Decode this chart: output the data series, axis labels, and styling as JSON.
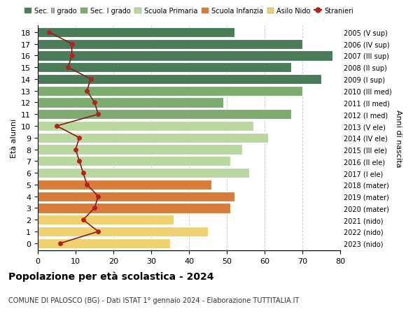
{
  "ages": [
    18,
    17,
    16,
    15,
    14,
    13,
    12,
    11,
    10,
    9,
    8,
    7,
    6,
    5,
    4,
    3,
    2,
    1,
    0
  ],
  "right_labels": [
    "2005 (V sup)",
    "2006 (IV sup)",
    "2007 (III sup)",
    "2008 (II sup)",
    "2009 (I sup)",
    "2010 (III med)",
    "2011 (II med)",
    "2012 (I med)",
    "2013 (V ele)",
    "2014 (IV ele)",
    "2015 (III ele)",
    "2016 (II ele)",
    "2017 (I ele)",
    "2018 (mater)",
    "2019 (mater)",
    "2020 (mater)",
    "2021 (nido)",
    "2022 (nido)",
    "2023 (nido)"
  ],
  "bar_values": [
    52,
    70,
    78,
    67,
    75,
    70,
    49,
    67,
    57,
    61,
    54,
    51,
    56,
    46,
    52,
    51,
    36,
    45,
    35
  ],
  "bar_colors": [
    "#4a7c59",
    "#4a7c59",
    "#4a7c59",
    "#4a7c59",
    "#4a7c59",
    "#7dab6e",
    "#7dab6e",
    "#7dab6e",
    "#b8d8a0",
    "#b8d8a0",
    "#b8d8a0",
    "#b8d8a0",
    "#b8d8a0",
    "#d97c3a",
    "#d97c3a",
    "#d97c3a",
    "#f0d070",
    "#f0d070",
    "#f0d070"
  ],
  "stranieri_values": [
    3,
    9,
    9,
    8,
    14,
    13,
    15,
    16,
    5,
    11,
    10,
    11,
    12,
    13,
    16,
    15,
    12,
    16,
    6
  ],
  "legend_labels": [
    "Sec. II grado",
    "Sec. I grado",
    "Scuola Primaria",
    "Scuola Infanzia",
    "Asilo Nido",
    "Stranieri"
  ],
  "legend_colors": [
    "#4a7c59",
    "#7dab6e",
    "#b8d8a0",
    "#d97c3a",
    "#f0d070",
    "#b22222"
  ],
  "ylabel_left": "Età alunni",
  "ylabel_right": "Anni di nascita",
  "title": "Popolazione per età scolastica - 2024",
  "subtitle": "COMUNE DI PALOSCO (BG) - Dati ISTAT 1° gennaio 2024 - Elaborazione TUTTITALIA.IT",
  "xlim": [
    0,
    80
  ],
  "background_color": "#ffffff",
  "bar_edge_color": "white",
  "grid_color": "#cccccc",
  "stranieri_line_color": "#8b1a1a",
  "stranieri_dot_color": "#b22222"
}
